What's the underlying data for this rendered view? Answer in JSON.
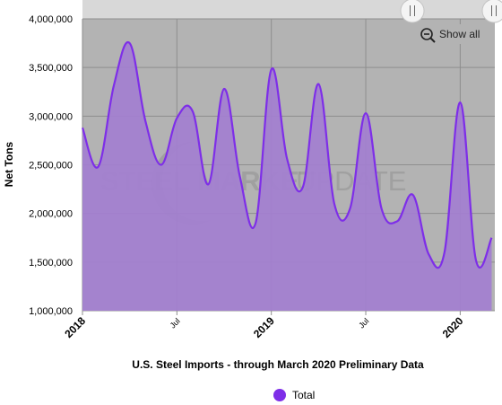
{
  "chart_data": {
    "type": "area",
    "title": "U.S. Steel Imports - through March 2020 Preliminary Data",
    "ylabel": "Net Tons",
    "xlabel": "",
    "ylim": [
      1000000,
      4000000
    ],
    "y_ticks": [
      "1,000,000",
      "1,500,000",
      "2,000,000",
      "2,500,000",
      "3,000,000",
      "3,500,000",
      "4,000,000"
    ],
    "y_tick_values": [
      1000000,
      1500000,
      2000000,
      2500000,
      3000000,
      3500000,
      4000000
    ],
    "x_ticks": [
      {
        "label": "2018",
        "x": "2018-01",
        "major": true
      },
      {
        "label": "Jul",
        "x": "2018-07",
        "major": false
      },
      {
        "label": "2019",
        "x": "2019-01",
        "major": true
      },
      {
        "label": "Jul",
        "x": "2019-07",
        "major": false
      },
      {
        "label": "2020",
        "x": "2020-01",
        "major": true
      }
    ],
    "grid": true,
    "legend": "bottom-center",
    "series": [
      {
        "name": "Total",
        "color": "#7e2ee8",
        "fill": "#a37fd0",
        "x": [
          "2018-01",
          "2018-02",
          "2018-03",
          "2018-04",
          "2018-05",
          "2018-06",
          "2018-07",
          "2018-08",
          "2018-09",
          "2018-10",
          "2018-11",
          "2018-12",
          "2019-01",
          "2019-02",
          "2019-03",
          "2019-04",
          "2019-05",
          "2019-06",
          "2019-07",
          "2019-08",
          "2019-09",
          "2019-10",
          "2019-11",
          "2019-12",
          "2020-01",
          "2020-02",
          "2020-03"
        ],
        "values": [
          2880000,
          2480000,
          3320000,
          3750000,
          2950000,
          2500000,
          2980000,
          3050000,
          2300000,
          3280000,
          2380000,
          1900000,
          3480000,
          2560000,
          2270000,
          3330000,
          2100000,
          2050000,
          3030000,
          2050000,
          1920000,
          2190000,
          1580000,
          1600000,
          3140000,
          1520000,
          1750000
        ]
      }
    ]
  },
  "ui": {
    "show_all_label": "Show all",
    "zoom_icon": "zoom-out-magnifier-icon",
    "watermark": {
      "bold": "STEEL MARKET",
      "thin": "UPDATE"
    },
    "colors": {
      "plot_bg": "#b3b3b3",
      "navigator_bg": "#d8d8d8",
      "accent": "#7e2ee8"
    }
  }
}
